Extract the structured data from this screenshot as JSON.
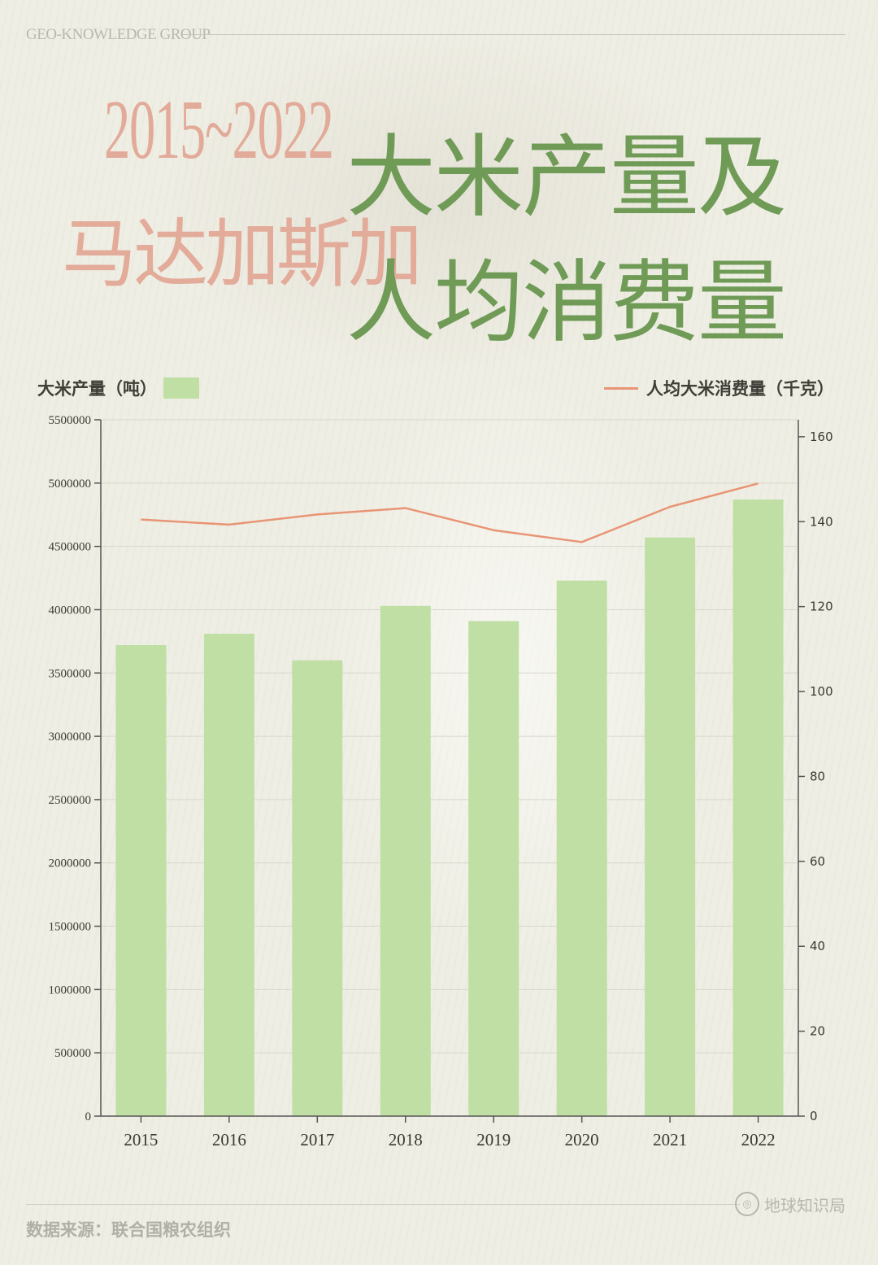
{
  "header": {
    "brand": "GEO-KNOWLEDGE GROUP",
    "title_range": "2015~2022",
    "title_country": "马达加斯加",
    "title_line1": "大米产量及",
    "title_line2": "人均消费量"
  },
  "footer": {
    "source": "数据来源：联合国粮农组织",
    "logo_text": "地球知识局",
    "logo_icon": "globe-seal-icon"
  },
  "colors": {
    "bar": "#bfdfa5",
    "line": "#e89575",
    "title_green": "#6f9b57",
    "title_pink": "#e3ab99"
  },
  "chart_data": {
    "type": "bar",
    "categories": [
      "2015",
      "2016",
      "2017",
      "2018",
      "2019",
      "2020",
      "2021",
      "2022"
    ],
    "series": [
      {
        "name": "大米产量（吨）",
        "type": "bar",
        "axis": "left",
        "values": [
          3720000,
          3810000,
          3600000,
          4030000,
          3910000,
          4230000,
          4570000,
          4870000
        ]
      },
      {
        "name": "人均大米消费量（千克）",
        "type": "line",
        "axis": "right",
        "values": [
          140.5,
          139.3,
          141.7,
          143.2,
          138.0,
          135.2,
          143.5,
          149.0
        ]
      }
    ],
    "y_left": {
      "min": 0,
      "max": 5500000,
      "ticks": [
        "0",
        "500000",
        "1000000",
        "1500000",
        "2000000",
        "2500000",
        "3000000",
        "3500000",
        "4000000",
        "4500000",
        "5000000",
        "5500000"
      ]
    },
    "y_right": {
      "min": 0,
      "max": 164,
      "ticks": [
        "0",
        "20",
        "40",
        "60",
        "80",
        "100",
        "120",
        "140",
        "160"
      ]
    },
    "grid": true,
    "legend": [
      "top-left: bars",
      "top-right: line"
    ]
  }
}
